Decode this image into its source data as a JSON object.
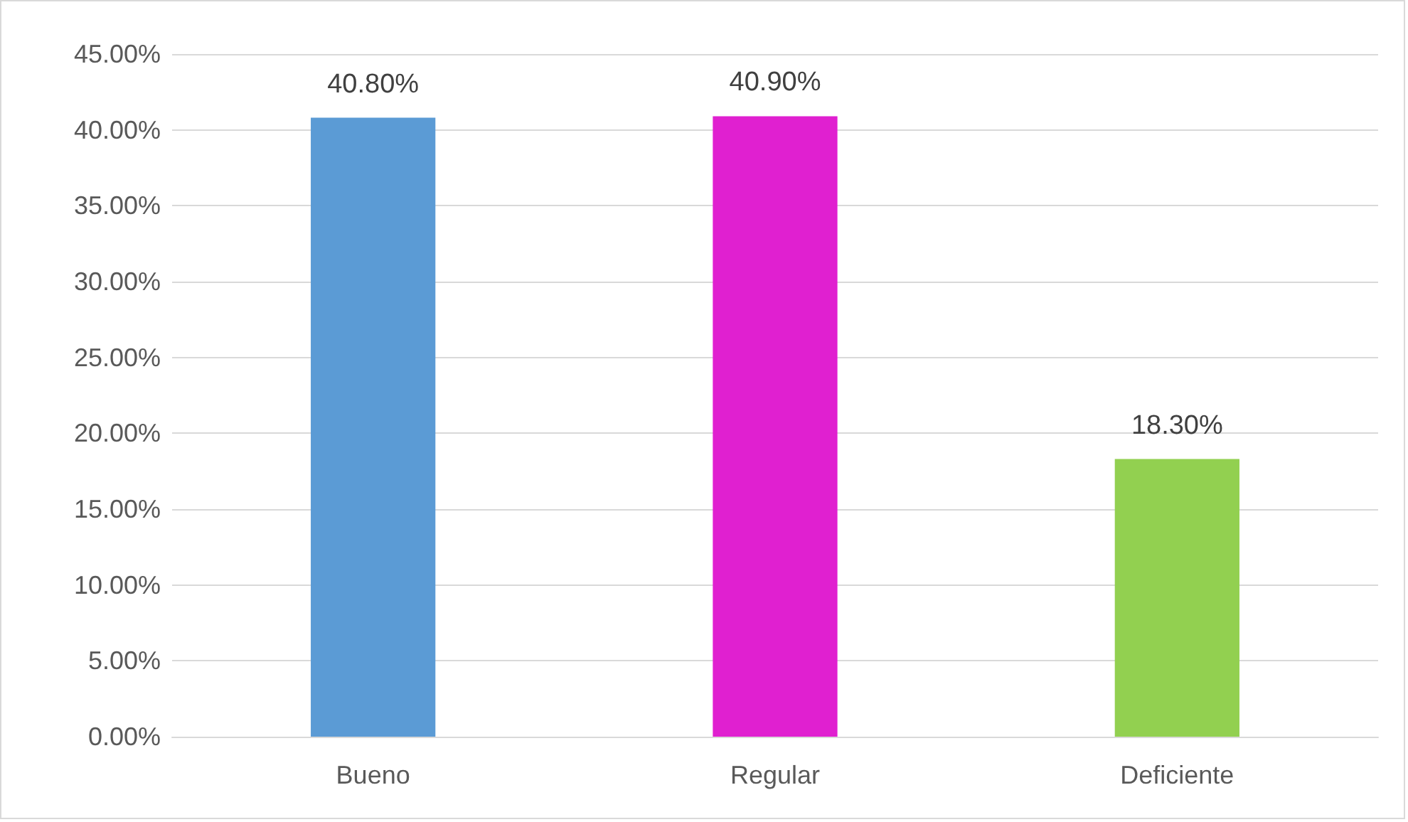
{
  "chart_data": {
    "type": "bar",
    "categories": [
      "Bueno",
      "Regular",
      "Deficiente"
    ],
    "values": [
      40.8,
      40.9,
      18.3
    ],
    "colors": [
      "#5b9bd5",
      "#e020d0",
      "#92d050"
    ],
    "value_labels": [
      "40.80%",
      "40.90%",
      "18.30%"
    ],
    "ylim": [
      0,
      45
    ],
    "yticks": [
      {
        "value": 0,
        "label": "0.00%"
      },
      {
        "value": 5,
        "label": "5.00%"
      },
      {
        "value": 10,
        "label": "10.00%"
      },
      {
        "value": 15,
        "label": "15.00%"
      },
      {
        "value": 20,
        "label": "20.00%"
      },
      {
        "value": 25,
        "label": "25.00%"
      },
      {
        "value": 30,
        "label": "30.00%"
      },
      {
        "value": 35,
        "label": "35.00%"
      },
      {
        "value": 40,
        "label": "40.00%"
      },
      {
        "value": 45,
        "label": "45.00%"
      }
    ],
    "grid": "y"
  }
}
